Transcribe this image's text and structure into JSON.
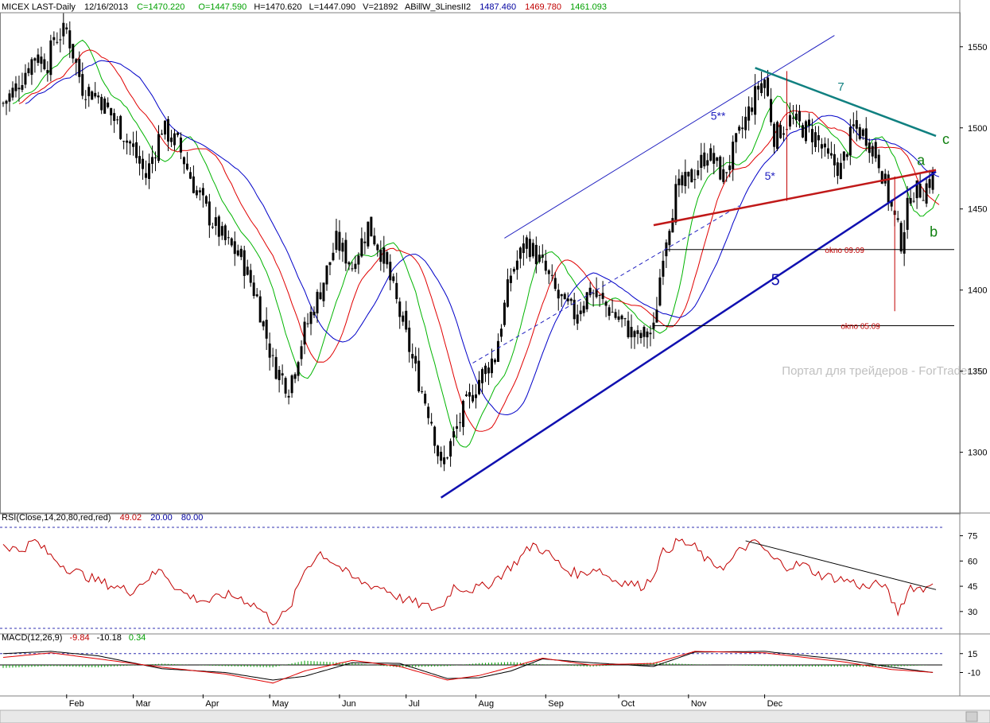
{
  "header": {
    "symbol": "MICEX LAST-Daily",
    "date": "12/16/2013",
    "close": "C=1470.220",
    "open": "O=1447.590",
    "high": "H=1470.620",
    "low": "L=1447.090",
    "volume": "V=21892",
    "indicator_name": "ABillW_3LinesII2",
    "ind_blue": "1487.460",
    "ind_red": "1469.780",
    "ind_green": "1461.093"
  },
  "rsi_header": {
    "label": "RSI(Close,14,20,80,red,red)",
    "value": "49.02",
    "low": "20.00",
    "high": "80.00"
  },
  "macd_header": {
    "label": "MACD(12,26,9)",
    "v1": "-9.84",
    "v2": "-10.18",
    "v3": "0.34"
  },
  "watermark": "Портал для трейдеров - ForTrader.ru",
  "colors": {
    "price": "#000000",
    "blue_line": "#0000c8",
    "red_line": "#e00000",
    "green_line": "#00b400",
    "rsi": "#c00000",
    "teal": "#108080",
    "macd_hist": "#00a000"
  },
  "annotations": {
    "wave_5": "5",
    "wave_5_star": "5*",
    "wave_5_2star": "5**",
    "wave_7": "7",
    "wave_a": "a",
    "wave_b": "b",
    "wave_c": "c",
    "okno_0909": "okno 09.09",
    "okno_0509": "okno 05.09"
  },
  "chart_data": [
    {
      "type": "candlestick",
      "title": "MICEX LAST-Daily",
      "x_ticks": [
        "Feb",
        "Mar",
        "Apr",
        "May",
        "Jun",
        "Jul",
        "Aug",
        "Sep",
        "Oct",
        "Nov",
        "Dec"
      ],
      "y_ticks": [
        1300,
        1350,
        1400,
        1450,
        1500,
        1550
      ],
      "ylim": [
        1265,
        1570
      ],
      "x_range_days": [
        0,
        250
      ],
      "anchors": [
        [
          0,
          1515
        ],
        [
          4,
          1525
        ],
        [
          10,
          1545
        ],
        [
          14,
          1540
        ],
        [
          16,
          1555
        ],
        [
          20,
          1560
        ],
        [
          25,
          1525
        ],
        [
          30,
          1520
        ],
        [
          35,
          1505
        ],
        [
          40,
          1490
        ],
        [
          45,
          1470
        ],
        [
          50,
          1500
        ],
        [
          55,
          1490
        ],
        [
          60,
          1465
        ],
        [
          65,
          1445
        ],
        [
          70,
          1430
        ],
        [
          75,
          1420
        ],
        [
          80,
          1395
        ],
        [
          85,
          1355
        ],
        [
          90,
          1340
        ],
        [
          95,
          1375
        ],
        [
          100,
          1400
        ],
        [
          105,
          1430
        ],
        [
          110,
          1415
        ],
        [
          115,
          1440
        ],
        [
          120,
          1420
        ],
        [
          125,
          1385
        ],
        [
          130,
          1350
        ],
        [
          135,
          1320
        ],
        [
          138,
          1290
        ],
        [
          140,
          1300
        ],
        [
          145,
          1325
        ],
        [
          150,
          1345
        ],
        [
          155,
          1360
        ],
        [
          160,
          1410
        ],
        [
          165,
          1430
        ],
        [
          170,
          1415
        ],
        [
          175,
          1395
        ],
        [
          180,
          1385
        ],
        [
          185,
          1400
        ],
        [
          190,
          1390
        ],
        [
          195,
          1380
        ],
        [
          200,
          1370
        ],
        [
          205,
          1375
        ],
        [
          208,
          1425
        ],
        [
          212,
          1460
        ],
        [
          217,
          1470
        ],
        [
          222,
          1485
        ],
        [
          227,
          1470
        ],
        [
          232,
          1495
        ],
        [
          235,
          1510
        ],
        [
          238,
          1525
        ],
        [
          240,
          1530
        ],
        [
          243,
          1495
        ],
        [
          248,
          1505
        ],
        [
          252,
          1500
        ],
        [
          256,
          1495
        ],
        [
          260,
          1480
        ],
        [
          264,
          1475
        ],
        [
          268,
          1500
        ],
        [
          272,
          1495
        ],
        [
          276,
          1480
        ],
        [
          280,
          1450
        ],
        [
          283,
          1430
        ],
        [
          286,
          1460
        ],
        [
          290,
          1462
        ],
        [
          293,
          1470
        ]
      ],
      "series": [
        {
          "name": "ABillW_3LinesII2",
          "color": "#0000c8",
          "last": 1487.46
        },
        {
          "name": "ABillW_3LinesII2",
          "color": "#e00000",
          "last": 1469.78
        },
        {
          "name": "ABillW_3LinesII2",
          "color": "#00b400",
          "last": 1461.093
        }
      ],
      "trendlines": [
        {
          "label": "5",
          "from": [
            138,
            1272
          ],
          "to": [
            294,
            1473
          ]
        },
        {
          "label": "5**",
          "from": [
            158,
            1432
          ],
          "to": [
            262,
            1557
          ]
        },
        {
          "label": "5*",
          "from": [
            148,
            1355
          ],
          "to": [
            232,
            1452
          ]
        },
        {
          "label": "7",
          "from": [
            237,
            1537
          ],
          "to": [
            294,
            1495
          ]
        },
        {
          "label": "",
          "from": [
            205,
            1440
          ],
          "to": [
            294,
            1474
          ]
        }
      ],
      "levels": [
        {
          "label": "okno 09.09",
          "value": 1425,
          "from_day": 209
        },
        {
          "label": "okno 05.09",
          "value": 1378,
          "from_day": 205
        }
      ]
    },
    {
      "type": "line",
      "title": "RSI(Close,14,20,80,red,red)",
      "y_ticks": [
        30,
        45,
        60,
        75
      ],
      "ylim": [
        20,
        80
      ],
      "levels": [
        20,
        80
      ],
      "anchors": [
        [
          0,
          70
        ],
        [
          5,
          66
        ],
        [
          10,
          72
        ],
        [
          15,
          63
        ],
        [
          20,
          56
        ],
        [
          25,
          52
        ],
        [
          30,
          48
        ],
        [
          35,
          45
        ],
        [
          40,
          42
        ],
        [
          45,
          49
        ],
        [
          50,
          55
        ],
        [
          55,
          43
        ],
        [
          60,
          38
        ],
        [
          65,
          36
        ],
        [
          70,
          40
        ],
        [
          75,
          38
        ],
        [
          80,
          33
        ],
        [
          85,
          24
        ],
        [
          90,
          30
        ],
        [
          95,
          55
        ],
        [
          100,
          65
        ],
        [
          105,
          58
        ],
        [
          110,
          50
        ],
        [
          115,
          46
        ],
        [
          120,
          44
        ],
        [
          125,
          38
        ],
        [
          130,
          35
        ],
        [
          135,
          32
        ],
        [
          138,
          32
        ],
        [
          142,
          45
        ],
        [
          147,
          43
        ],
        [
          152,
          45
        ],
        [
          157,
          52
        ],
        [
          162,
          60
        ],
        [
          167,
          70
        ],
        [
          172,
          64
        ],
        [
          177,
          55
        ],
        [
          182,
          52
        ],
        [
          187,
          56
        ],
        [
          192,
          49
        ],
        [
          197,
          47
        ],
        [
          201,
          45
        ],
        [
          204,
          49
        ],
        [
          208,
          65
        ],
        [
          213,
          72
        ],
        [
          218,
          68
        ],
        [
          223,
          58
        ],
        [
          228,
          57
        ],
        [
          233,
          68
        ],
        [
          238,
          71
        ],
        [
          242,
          62
        ],
        [
          247,
          57
        ],
        [
          252,
          58
        ],
        [
          257,
          52
        ],
        [
          262,
          50
        ],
        [
          267,
          48
        ],
        [
          272,
          44
        ],
        [
          277,
          47
        ],
        [
          282,
          30
        ],
        [
          286,
          45
        ],
        [
          290,
          43
        ],
        [
          293,
          49
        ]
      ],
      "trendline": {
        "from": [
          234,
          72
        ],
        "to": [
          294,
          43
        ]
      }
    },
    {
      "type": "line",
      "title": "MACD(12,26,9)",
      "y_ticks": [
        -10,
        15
      ],
      "ylim": [
        -28,
        24
      ],
      "series": [
        {
          "name": "",
          "color": "#000000",
          "anchors": [
            [
              0,
              15
            ],
            [
              15,
              18
            ],
            [
              30,
              12
            ],
            [
              50,
              -5
            ],
            [
              70,
              -10
            ],
            [
              85,
              -20
            ],
            [
              95,
              -15
            ],
            [
              110,
              3
            ],
            [
              125,
              2
            ],
            [
              140,
              -18
            ],
            [
              150,
              -17
            ],
            [
              160,
              -8
            ],
            [
              170,
              8
            ],
            [
              185,
              3
            ],
            [
              205,
              -2
            ],
            [
              218,
              17
            ],
            [
              240,
              18
            ],
            [
              265,
              7
            ],
            [
              280,
              -3
            ],
            [
              293,
              -10
            ]
          ]
        },
        {
          "name": "",
          "color": "#e00000",
          "anchors": [
            [
              0,
              10
            ],
            [
              15,
              16
            ],
            [
              30,
              8
            ],
            [
              50,
              -3
            ],
            [
              70,
              -12
            ],
            [
              85,
              -24
            ],
            [
              95,
              -8
            ],
            [
              110,
              6
            ],
            [
              125,
              -2
            ],
            [
              140,
              -20
            ],
            [
              150,
              -14
            ],
            [
              160,
              -3
            ],
            [
              170,
              9
            ],
            [
              185,
              0
            ],
            [
              205,
              2
            ],
            [
              218,
              18
            ],
            [
              240,
              16
            ],
            [
              265,
              4
            ],
            [
              280,
              -6
            ],
            [
              293,
              -9.84
            ]
          ]
        }
      ],
      "last": [
        -9.84,
        -10.18,
        0.34
      ]
    }
  ]
}
